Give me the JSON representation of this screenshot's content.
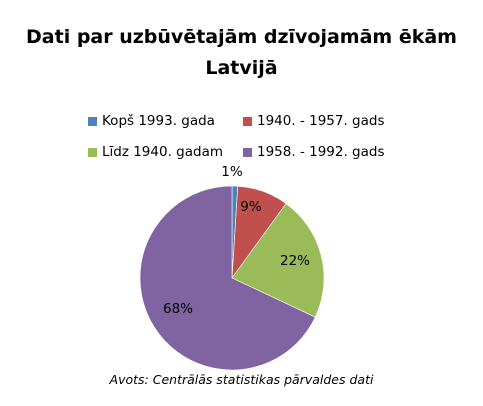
{
  "chart_data": {
    "type": "pie",
    "title_line1": "Dati par uzbūvētajām dzīvojamām ēkām",
    "title_line2": "Latvijā",
    "categories": [
      "Kopš 1993. gada",
      "1940. - 1957. gads",
      "Līdz 1940. gadam",
      "1958. - 1992. gads"
    ],
    "values": [
      1,
      9,
      22,
      68
    ],
    "labels": [
      "1%",
      "9%",
      "22%",
      "68%"
    ],
    "colors": [
      "#4f81bd",
      "#c0504d",
      "#9bbb59",
      "#8064a2"
    ],
    "legend_placement": "top",
    "source": "Avots: Centrālās statistikas pārvaldes dati"
  }
}
